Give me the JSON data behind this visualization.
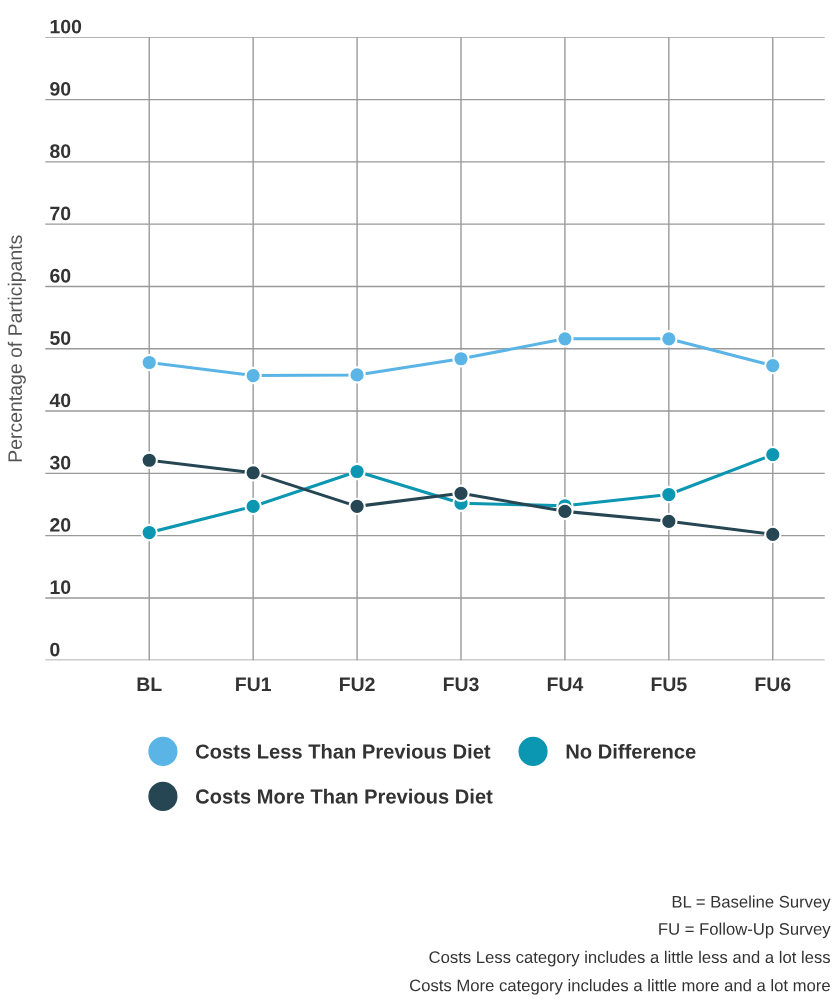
{
  "chart_data": {
    "type": "line",
    "ylabel": "Percentage of Participants",
    "categories": [
      "BL",
      "FU1",
      "FU2",
      "FU3",
      "FU4",
      "FU5",
      "FU6"
    ],
    "series": [
      {
        "name": "Costs Less Than Previous Diet",
        "color": "#5ab4e5",
        "values": [
          47.8,
          45.7,
          45.8,
          48.4,
          51.6,
          51.6,
          47.3
        ]
      },
      {
        "name": "No Difference",
        "color": "#0b96b1",
        "values": [
          20.5,
          24.7,
          30.3,
          25.2,
          24.8,
          26.6,
          33.0
        ]
      },
      {
        "name": "Costs More Than Previous Diet",
        "color": "#264653",
        "values": [
          32.1,
          30.1,
          24.7,
          26.8,
          23.9,
          22.3,
          20.2
        ]
      }
    ],
    "ylim": [
      0,
      100
    ],
    "yticks": [
      0,
      10,
      20,
      30,
      40,
      50,
      60,
      70,
      80,
      90,
      100
    ],
    "grid": true,
    "legend": "bottom",
    "marker": "circle",
    "line_style": "solid",
    "annotations": [
      "BL = Baseline Survey",
      "FU = Follow-Up Survey",
      "Costs Less category includes a little less and a lot less",
      "Costs More category includes a little more and a lot more"
    ]
  }
}
